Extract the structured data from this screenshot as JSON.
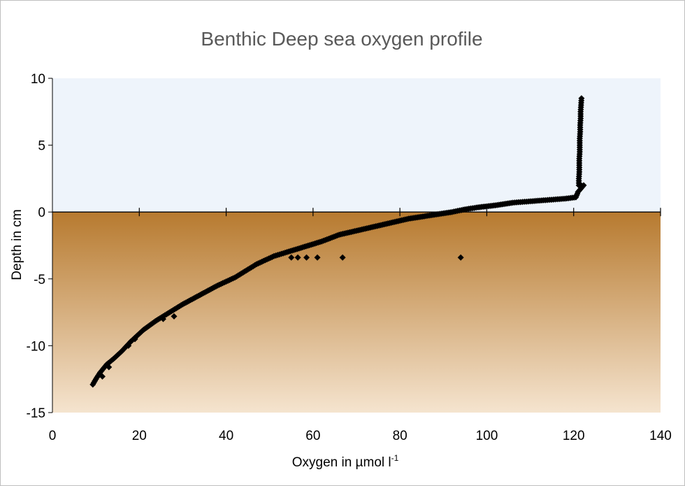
{
  "chart_data": {
    "type": "scatter",
    "title": "Benthic Deep sea oxygen profile",
    "xlabel_main": "Oxygen in µmol l",
    "xlabel_sup": "-1",
    "ylabel": "Depth in cm",
    "xlim": [
      0,
      140
    ],
    "ylim": [
      -15,
      10
    ],
    "x_ticks": [
      0,
      20,
      40,
      60,
      80,
      100,
      120,
      140
    ],
    "y_ticks": [
      10,
      5,
      0,
      -5,
      -10,
      -15
    ],
    "grid": false,
    "legend": "none",
    "regions": [
      {
        "name": "water",
        "y_from": 0,
        "y_to": 10,
        "color": "#eef4fb"
      },
      {
        "name": "sediment",
        "y_from": -15,
        "y_to": 0,
        "color_top": "#b77a2f",
        "color_bottom": "#f5e4cf"
      }
    ],
    "marker": {
      "shape": "diamond",
      "color": "#000000"
    },
    "series": [
      {
        "points": [
          [
            121.8,
            8.5
          ],
          [
            121.7,
            8.0
          ],
          [
            121.6,
            7.5
          ],
          [
            121.6,
            7.0
          ],
          [
            121.5,
            6.5
          ],
          [
            121.5,
            6.0
          ],
          [
            121.4,
            5.5
          ],
          [
            121.4,
            5.0
          ],
          [
            121.4,
            4.5
          ],
          [
            121.3,
            4.0
          ],
          [
            121.3,
            3.5
          ],
          [
            121.3,
            3.0
          ],
          [
            121.2,
            2.5
          ],
          [
            121.2,
            2.0
          ],
          [
            122.3,
            2.0
          ],
          [
            121.0,
            1.5
          ],
          [
            120.5,
            1.1
          ],
          [
            118.0,
            1.0
          ],
          [
            114.0,
            0.9
          ],
          [
            110.0,
            0.8
          ],
          [
            106.0,
            0.7
          ],
          [
            102.0,
            0.5
          ],
          [
            98.0,
            0.35
          ],
          [
            95.0,
            0.2
          ],
          [
            92.0,
            0.0
          ],
          [
            90.0,
            -0.1
          ],
          [
            86.0,
            -0.3
          ],
          [
            82.0,
            -0.5
          ],
          [
            78.0,
            -0.8
          ],
          [
            74.0,
            -1.1
          ],
          [
            70.0,
            -1.4
          ],
          [
            66.0,
            -1.7
          ],
          [
            62.0,
            -2.2
          ],
          [
            58.0,
            -2.6
          ],
          [
            54.0,
            -3.0
          ],
          [
            51.0,
            -3.3
          ],
          [
            49.0,
            -3.6
          ],
          [
            47.0,
            -3.9
          ],
          [
            45.0,
            -4.3
          ],
          [
            42.0,
            -4.9
          ],
          [
            38.0,
            -5.5
          ],
          [
            34.0,
            -6.2
          ],
          [
            30.0,
            -6.9
          ],
          [
            27.0,
            -7.5
          ],
          [
            24.0,
            -8.1
          ],
          [
            21.0,
            -8.8
          ],
          [
            18.0,
            -9.7
          ],
          [
            16.0,
            -10.4
          ],
          [
            14.0,
            -11.0
          ],
          [
            12.5,
            -11.4
          ],
          [
            11.0,
            -12.0
          ],
          [
            10.0,
            -12.5
          ],
          [
            9.3,
            -12.9
          ],
          [
            55.0,
            -3.4
          ],
          [
            56.5,
            -3.4
          ],
          [
            58.5,
            -3.4
          ],
          [
            61.0,
            -3.4
          ],
          [
            66.8,
            -3.4
          ],
          [
            94.0,
            -3.4
          ],
          [
            25.5,
            -8.0
          ],
          [
            28.0,
            -7.8
          ],
          [
            19.0,
            -9.5
          ],
          [
            17.5,
            -10.0
          ],
          [
            13.0,
            -11.6
          ],
          [
            11.5,
            -12.3
          ]
        ]
      }
    ]
  }
}
